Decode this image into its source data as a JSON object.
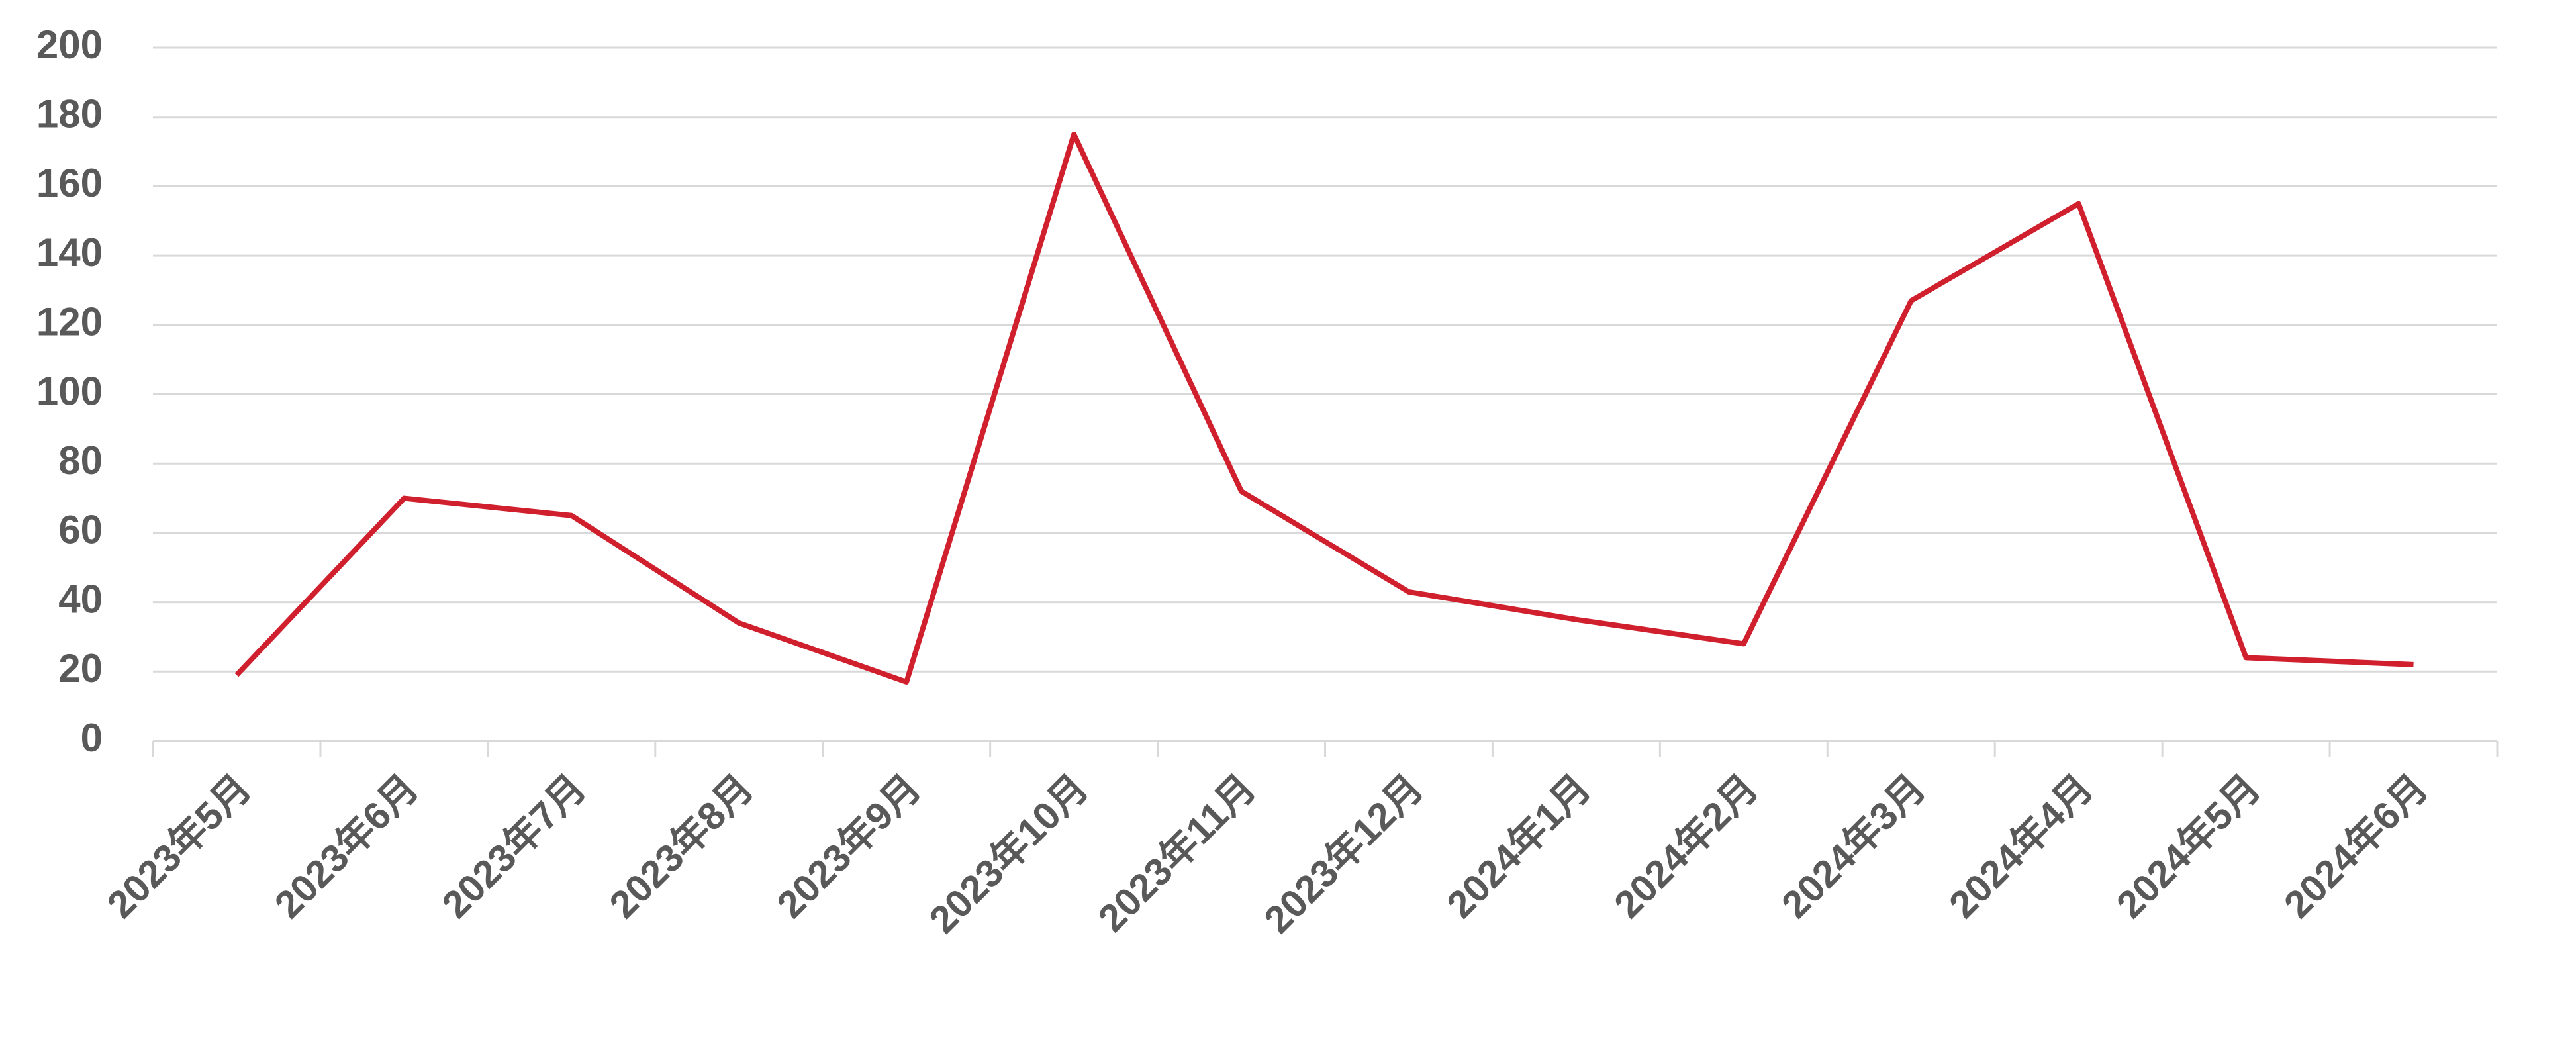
{
  "chart_data": {
    "type": "line",
    "categories": [
      "2023年5月",
      "2023年6月",
      "2023年7月",
      "2023年8月",
      "2023年9月",
      "2023年10月",
      "2023年11月",
      "2023年12月",
      "2024年1月",
      "2024年2月",
      "2024年3月",
      "2024年4月",
      "2024年5月",
      "2024年6月"
    ],
    "values": [
      19,
      70,
      65,
      34,
      17,
      175,
      72,
      43,
      35,
      28,
      127,
      155,
      24,
      22
    ],
    "color": "#d0202e",
    "ylim": [
      0,
      200
    ],
    "yticks": [
      0,
      20,
      40,
      60,
      80,
      100,
      120,
      140,
      160,
      180,
      200
    ],
    "grid": true
  }
}
